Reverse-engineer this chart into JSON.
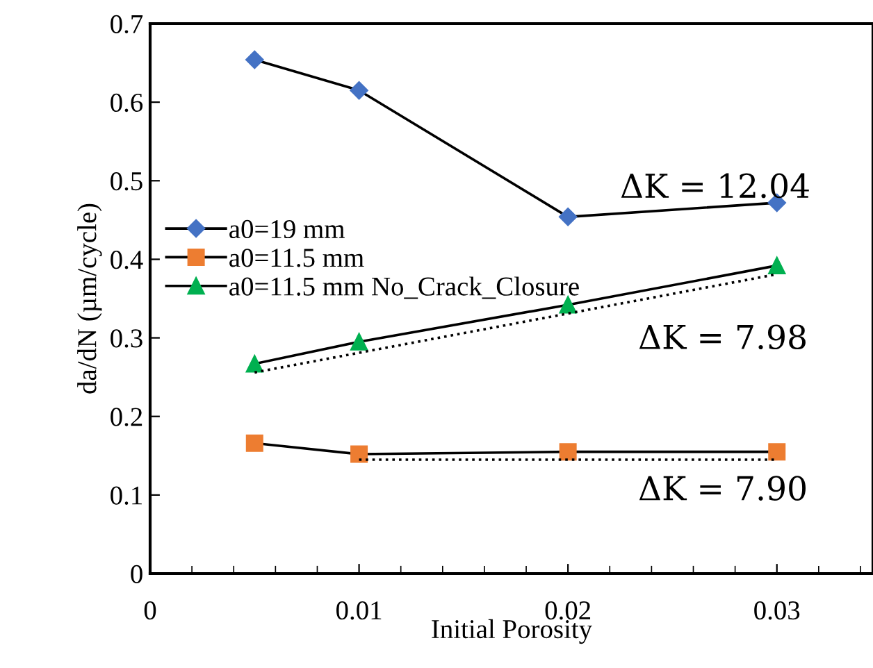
{
  "chart_data": {
    "type": "line",
    "xlabel": "Initial Porosity",
    "ylabel": "da/dN (µm/cycle)",
    "xlim": [
      0,
      0.0346
    ],
    "xticks": [
      0,
      0.01,
      0.02,
      0.03
    ],
    "ylim": [
      0,
      0.7
    ],
    "yticks": [
      0,
      0.1,
      0.2,
      0.3,
      0.4,
      0.5,
      0.6,
      0.7
    ],
    "grid": false,
    "legend": "left",
    "series": [
      {
        "name": "a0=19 mm",
        "color": "#4472c4",
        "marker": "diamond",
        "x": [
          0.005,
          0.01,
          0.02,
          0.03
        ],
        "values": [
          0.654,
          0.615,
          0.454,
          0.472
        ]
      },
      {
        "name": "a0=11.5 mm",
        "color": "#ed7d31",
        "marker": "square",
        "x": [
          0.005,
          0.01,
          0.02,
          0.03
        ],
        "values": [
          0.166,
          0.152,
          0.155,
          0.155
        ]
      },
      {
        "name": "a0=11.5 mm No_Crack_Closure",
        "color": "#00b050",
        "marker": "triangle",
        "x": [
          0.005,
          0.01,
          0.02,
          0.03
        ],
        "values": [
          0.267,
          0.295,
          0.342,
          0.392
        ]
      },
      {
        "color": "#000000",
        "marker": "none",
        "line_style": "dotted",
        "x": [
          0.005,
          0.03
        ],
        "values": [
          0.256,
          0.381
        ]
      },
      {
        "color": "#000000",
        "marker": "none",
        "line_style": "dotted",
        "x": [
          0.01,
          0.03
        ],
        "values": [
          0.145,
          0.145
        ]
      }
    ],
    "annotations": [
      "ΔK = 12.04",
      "ΔK = 7.98",
      "ΔK = 7.90"
    ]
  }
}
